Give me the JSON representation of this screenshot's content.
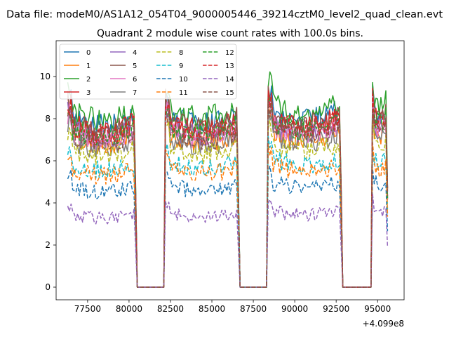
{
  "chart_data": {
    "type": "line",
    "suptitle": "Data file: modeM0/AS1A12_054T04_9000005446_39214cztM0_level2_quad_clean.evt",
    "title": "Quadrant 2 module wise count rates with 100.0s bins.",
    "xlabel": "",
    "ylabel": "",
    "x_offset_label": "+4.099e8",
    "xlim": [
      75600,
      96600
    ],
    "ylim": [
      -0.6,
      11.7
    ],
    "xticks": [
      77500,
      80000,
      82500,
      85000,
      87500,
      90000,
      92500,
      95000
    ],
    "xtick_labels": [
      "77500",
      "80000",
      "82500",
      "85000",
      "87500",
      "90000",
      "92500",
      "95000"
    ],
    "yticks": [
      0,
      2,
      4,
      6,
      8,
      10
    ],
    "ytick_labels": [
      "0",
      "2",
      "4",
      "6",
      "8",
      "10"
    ],
    "grid": false,
    "legend_placement": "upper-left, 4 columns",
    "x_range": [
      76300,
      95600
    ],
    "bin_width": 100,
    "segments": [
      {
        "on": 76300,
        "off": 80400
      },
      {
        "on": 82200,
        "off": 86600
      },
      {
        "on": 88400,
        "off": 92800
      },
      {
        "on": 94700,
        "off": 95600
      }
    ],
    "gap_value": 0,
    "series": [
      {
        "name": "0",
        "color": "#1f77b4",
        "style": "solid",
        "level": 8.1
      },
      {
        "name": "1",
        "color": "#ff7f0e",
        "style": "solid",
        "level": 7.2
      },
      {
        "name": "2",
        "color": "#2ca02c",
        "style": "solid",
        "level": 8.4
      },
      {
        "name": "3",
        "color": "#d62728",
        "style": "solid",
        "level": 7.8
      },
      {
        "name": "4",
        "color": "#9467bd",
        "style": "solid",
        "level": 7.5
      },
      {
        "name": "5",
        "color": "#8c564b",
        "style": "solid",
        "level": 7.9
      },
      {
        "name": "6",
        "color": "#e377c2",
        "style": "solid",
        "level": 7.4
      },
      {
        "name": "7",
        "color": "#7f7f7f",
        "style": "solid",
        "level": 7.0
      },
      {
        "name": "8",
        "color": "#bcbd22",
        "style": "dashed",
        "level": 6.6
      },
      {
        "name": "9",
        "color": "#17becf",
        "style": "dashed",
        "level": 5.9
      },
      {
        "name": "10",
        "color": "#1f77b4",
        "style": "dashed",
        "level": 4.8
      },
      {
        "name": "11",
        "color": "#ff7f0e",
        "style": "dashed",
        "level": 5.6
      },
      {
        "name": "12",
        "color": "#2ca02c",
        "style": "dashed",
        "level": 7.6
      },
      {
        "name": "13",
        "color": "#d62728",
        "style": "dashed",
        "level": 7.7
      },
      {
        "name": "14",
        "color": "#9467bd",
        "style": "dashed",
        "level": 3.5
      },
      {
        "name": "15",
        "color": "#8c564b",
        "style": "dashed",
        "level": 7.3
      }
    ]
  }
}
